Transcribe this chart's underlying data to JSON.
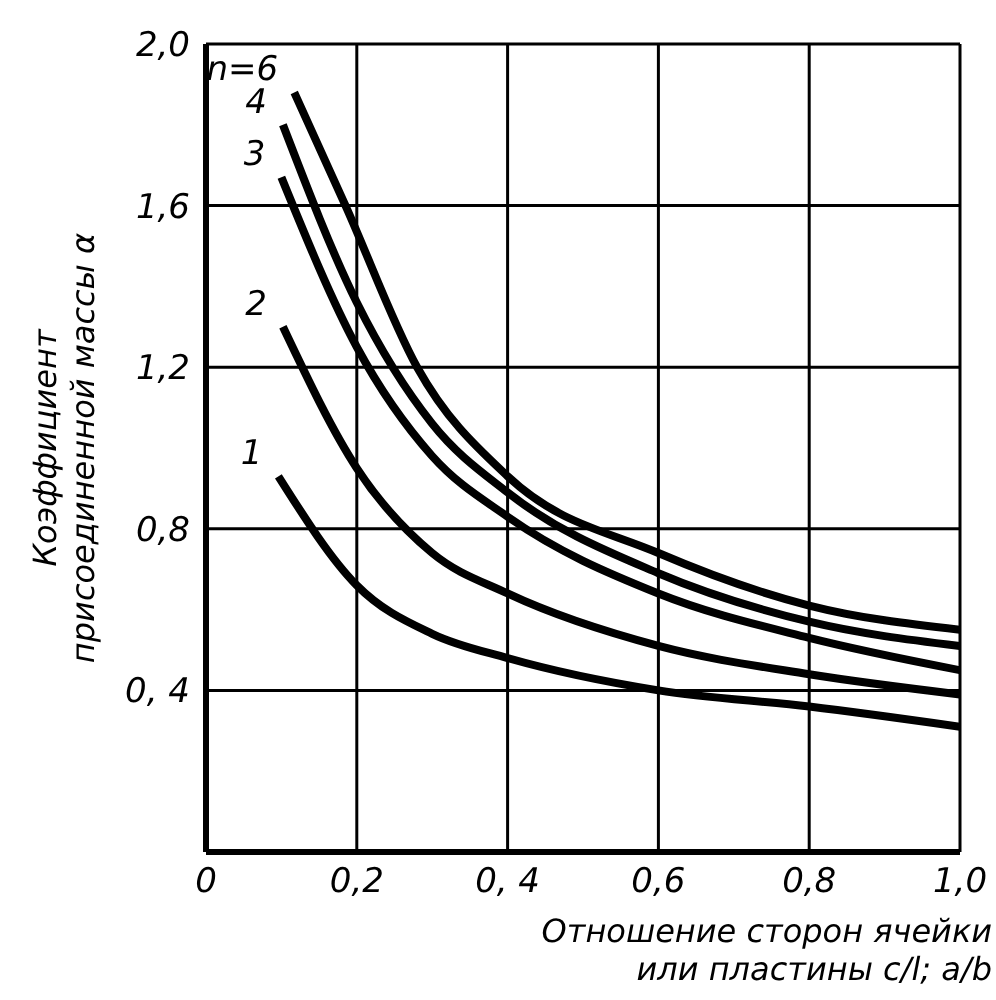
{
  "chart_data": {
    "type": "line",
    "xlabel": "Отношение сторон ячейки или пластины c/l; a/b",
    "ylabel": "Коэффициент присоединенной массы α",
    "xlim": [
      0,
      1
    ],
    "xticks": [
      0,
      {
        "value": 0.2,
        "label": "0,2"
      },
      {
        "value": 0.4,
        "label": "0, 4"
      },
      {
        "value": 0.6,
        "label": "0,6"
      },
      {
        "value": 0.8,
        "label": "0,8"
      },
      {
        "value": 1,
        "label": "1,0"
      }
    ],
    "ylim": [
      0,
      2
    ],
    "yticks": [
      {
        "value": 0,
        "label": null
      },
      {
        "value": 0.4,
        "label": "0, 4"
      },
      {
        "value": 0.8,
        "label": "0,8"
      },
      {
        "value": 1.2,
        "label": "1,2"
      },
      {
        "value": 1.6,
        "label": "1,6"
      },
      {
        "value": 2,
        "label": "2,0"
      }
    ],
    "grid": true,
    "legend": false,
    "marker": "none",
    "line_style": "solid",
    "series": [
      {
        "name": "1",
        "color": "#000000",
        "x": [
          0.096,
          0.2,
          0.3,
          0.4,
          0.6,
          0.8,
          1.0
        ],
        "values": [
          0.93,
          0.66,
          0.54,
          0.48,
          0.4,
          0.36,
          0.31
        ]
      },
      {
        "name": "2",
        "color": "#000000",
        "x": [
          0.102,
          0.2,
          0.3,
          0.4,
          0.6,
          0.8,
          1.0
        ],
        "values": [
          1.3,
          0.95,
          0.74,
          0.64,
          0.51,
          0.44,
          0.39
        ]
      },
      {
        "name": "3",
        "color": "#000000",
        "x": [
          0.1,
          0.2,
          0.3,
          0.4,
          0.6,
          0.8,
          1.0
        ],
        "values": [
          1.67,
          1.25,
          0.98,
          0.83,
          0.64,
          0.53,
          0.45
        ]
      },
      {
        "name": "4",
        "color": "#000000",
        "x": [
          0.102,
          0.2,
          0.3,
          0.4,
          0.6,
          0.8,
          1.0
        ],
        "values": [
          1.8,
          1.36,
          1.06,
          0.89,
          0.69,
          0.57,
          0.51
        ]
      },
      {
        "name": "n=6",
        "color": "#000000",
        "x": [
          0.117,
          0.185,
          0.28,
          0.4,
          0.6,
          0.8,
          1.0
        ],
        "values": [
          1.88,
          1.6,
          1.2,
          0.93,
          0.74,
          0.61,
          0.55
        ]
      }
    ]
  }
}
